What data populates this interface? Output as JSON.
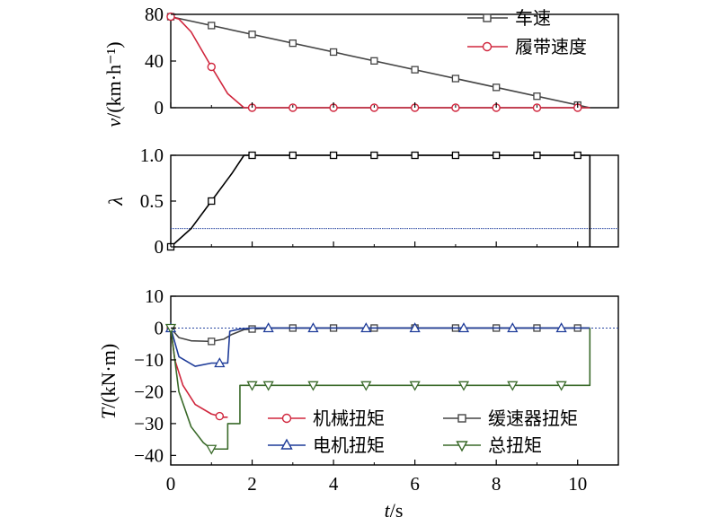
{
  "colors": {
    "speed": "#444444",
    "track": "#d0263d",
    "ratio": "#000000",
    "ratio_ref": "#2846a0",
    "mech": "#d0263d",
    "retarder": "#444444",
    "motor": "#1f3c99",
    "total": "#3a6a2a",
    "axis": "#000000"
  },
  "chart_data": [
    {
      "type": "line",
      "id": "speed",
      "ylabel_main": "v",
      "ylabel_unit": "/(km·h⁻¹)",
      "xlim": [
        0,
        11
      ],
      "ylim": [
        0,
        80
      ],
      "yticks": [
        "0",
        "40",
        "80"
      ],
      "ytick_values": [
        0,
        40,
        80
      ],
      "legend_position": "top-right",
      "series": [
        {
          "name": "车速",
          "key": "speed",
          "marker": "square",
          "x": [
            0,
            10.3
          ],
          "y": [
            78,
            0
          ],
          "marker_x": [
            0,
            1,
            2,
            3,
            4,
            5,
            6,
            7,
            8,
            9,
            10
          ]
        },
        {
          "name": "履带速度",
          "key": "track",
          "marker": "circle",
          "x": [
            0,
            0.2,
            0.5,
            1.0,
            1.4,
            1.8,
            2,
            3,
            4,
            5,
            6,
            7,
            8,
            9,
            10,
            10.3
          ],
          "y": [
            78,
            76,
            65,
            35,
            12,
            0,
            0,
            0,
            0,
            0,
            0,
            0,
            0,
            0,
            0,
            0
          ],
          "marker_x": [
            0,
            1,
            2,
            3,
            4,
            5,
            6,
            7,
            8,
            9,
            10
          ]
        }
      ]
    },
    {
      "type": "line",
      "id": "ratio",
      "ylabel_main": "λ",
      "xlim": [
        0,
        11
      ],
      "ylim": [
        0,
        1.0
      ],
      "yticks": [
        "0",
        "0.5",
        "1.0"
      ],
      "ytick_values": [
        0,
        0.5,
        1.0
      ],
      "reference_line": 0.2,
      "series": [
        {
          "key": "ratio",
          "marker": "square",
          "x": [
            0,
            0.5,
            1.0,
            1.5,
            1.8,
            2,
            3,
            4,
            5,
            6,
            7,
            8,
            9,
            10,
            10.3,
            10.3
          ],
          "y": [
            0,
            0.2,
            0.5,
            0.8,
            1.0,
            1.0,
            1.0,
            1.0,
            1.0,
            1.0,
            1.0,
            1.0,
            1.0,
            1.0,
            1.0,
            0
          ],
          "marker_x": [
            0,
            1,
            2,
            3,
            4,
            5,
            6,
            7,
            8,
            9,
            10
          ]
        }
      ]
    },
    {
      "type": "line",
      "id": "torque",
      "ylabel_main": "T",
      "ylabel_unit": "/(kN·m)",
      "xlabel_main": "t",
      "xlabel_unit": "/s",
      "xlim": [
        0,
        11
      ],
      "ylim": [
        -43,
        10
      ],
      "yticks": [
        "10",
        "0",
        "−10",
        "−20",
        "−30",
        "−40"
      ],
      "ytick_values": [
        10,
        0,
        -10,
        -20,
        -30,
        -40
      ],
      "xticks": [
        "0",
        "2",
        "4",
        "6",
        "8",
        "10"
      ],
      "xtick_values": [
        0,
        2,
        4,
        6,
        8,
        10
      ],
      "reference_line": 0,
      "legend_position": "bottom-right",
      "series": [
        {
          "name": "机械扭矩",
          "key": "mech",
          "marker": "circle",
          "x": [
            0,
            0.1,
            0.3,
            0.6,
            1.0,
            1.3,
            1.4
          ],
          "y": [
            0,
            -10,
            -18,
            -24,
            -27,
            -28,
            -28
          ],
          "marker_x": [
            0,
            1.2
          ]
        },
        {
          "name": "缓速器扭矩",
          "key": "retarder",
          "marker": "square",
          "x": [
            0,
            0.2,
            0.5,
            1.0,
            1.3,
            1.5,
            1.8,
            2,
            2.5,
            3,
            10.3,
            10.3
          ],
          "y": [
            0,
            -3,
            -4,
            -4.2,
            -3.5,
            -2,
            -0.5,
            -0.3,
            0,
            0,
            0,
            0
          ],
          "marker_x": [
            0,
            1,
            2,
            3,
            4,
            5,
            6,
            7,
            8,
            9,
            10
          ]
        },
        {
          "name": "电机扭矩",
          "key": "motor",
          "marker": "triangle-up",
          "x": [
            0,
            0.2,
            0.6,
            1.0,
            1.2,
            1.4,
            1.45,
            1.7,
            2,
            10.3
          ],
          "y": [
            0,
            -9,
            -12,
            -11,
            -11,
            -11,
            -1,
            -0.3,
            0,
            0
          ],
          "marker_x": [
            0,
            1.2,
            2.4,
            3.5,
            4.8,
            6,
            7.2,
            8.4,
            9.6
          ]
        },
        {
          "name": "总扭矩",
          "key": "total",
          "marker": "triangle-down",
          "x": [
            0,
            0.2,
            0.5,
            0.8,
            1.0,
            1.3,
            1.4,
            1.4,
            1.7,
            1.7,
            2,
            10.3,
            10.3
          ],
          "y": [
            0,
            -20,
            -31,
            -36,
            -38,
            -38,
            -38,
            -30,
            -30,
            -18,
            -18,
            -18,
            0
          ],
          "marker_x": [
            0,
            1,
            2,
            2.4,
            3.5,
            4.8,
            6,
            7.2,
            8.4,
            9.6
          ]
        }
      ]
    }
  ]
}
